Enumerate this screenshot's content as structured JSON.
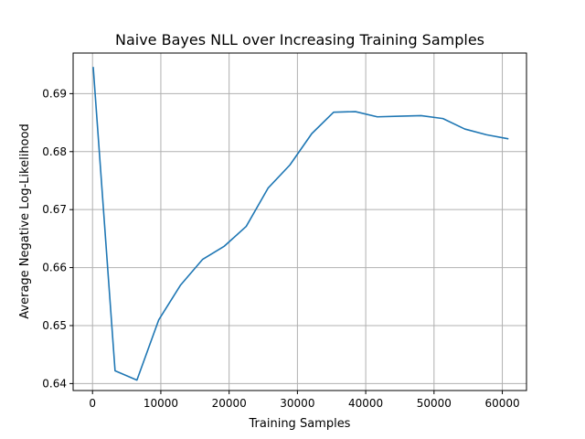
{
  "chart_data": {
    "type": "line",
    "title": "Naive Bayes NLL over Increasing Training Samples",
    "xlabel": "Training Samples",
    "ylabel": "Average Negative Log-Likelihood",
    "xlim": [
      -2840,
      63540
    ],
    "ylim": [
      0.6388,
      0.697
    ],
    "xticks": [
      0,
      10000,
      20000,
      30000,
      40000,
      50000,
      60000
    ],
    "xtick_labels": [
      "0",
      "10000",
      "20000",
      "30000",
      "40000",
      "50000",
      "60000"
    ],
    "yticks": [
      0.64,
      0.65,
      0.66,
      0.67,
      0.68,
      0.69
    ],
    "ytick_labels": [
      "0.64",
      "0.65",
      "0.66",
      "0.67",
      "0.68",
      "0.69"
    ],
    "grid": true,
    "series": [
      {
        "color": "#1f77b4",
        "x": [
          100,
          3300,
          6500,
          9700,
          12900,
          16100,
          19300,
          22500,
          25700,
          28900,
          32100,
          35300,
          38500,
          41700,
          44900,
          48100,
          51300,
          54500,
          57700,
          60900
        ],
        "y": [
          0.6946,
          0.6422,
          0.6406,
          0.651,
          0.657,
          0.6614,
          0.6637,
          0.6671,
          0.6737,
          0.6777,
          0.6831,
          0.6868,
          0.6869,
          0.686,
          0.6861,
          0.6862,
          0.6857,
          0.6839,
          0.6829,
          0.6822
        ]
      }
    ]
  }
}
